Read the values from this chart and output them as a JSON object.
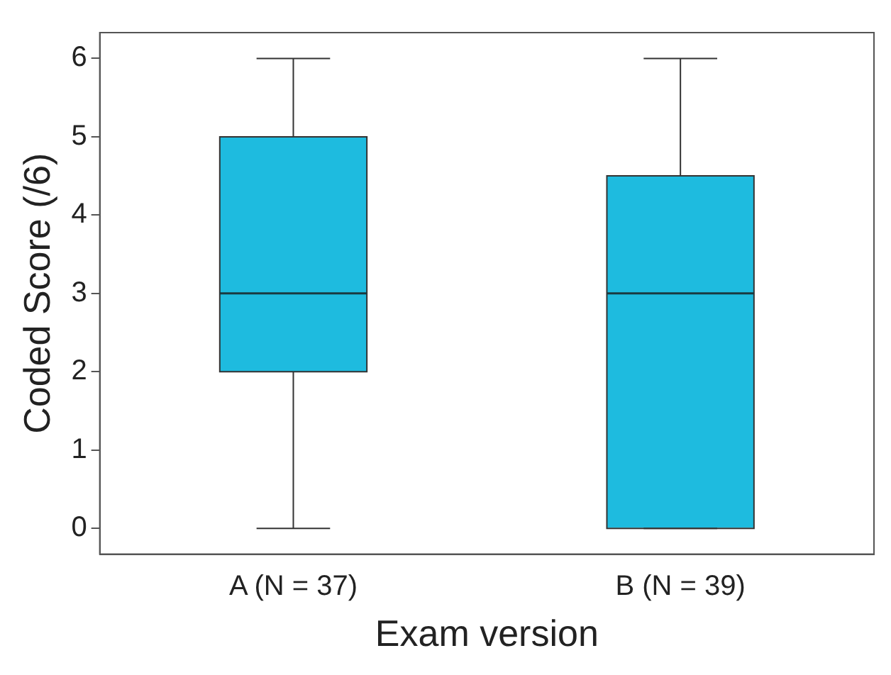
{
  "chart_data": {
    "type": "box",
    "xlabel": "Exam version",
    "ylabel": "Coded Score (/6)",
    "categories": [
      "A (N = 37)",
      "B (N = 39)"
    ],
    "boxes": [
      {
        "low": 0,
        "q1": 2,
        "median": 3,
        "q3": 5,
        "high": 6
      },
      {
        "low": 0,
        "q1": 0,
        "median": 3,
        "q3": 4.5,
        "high": 6
      }
    ],
    "color": "#1ebbdf",
    "ylim": [
      -0.33,
      6.33
    ],
    "yticks": [
      0,
      1,
      2,
      3,
      4,
      5,
      6
    ]
  }
}
